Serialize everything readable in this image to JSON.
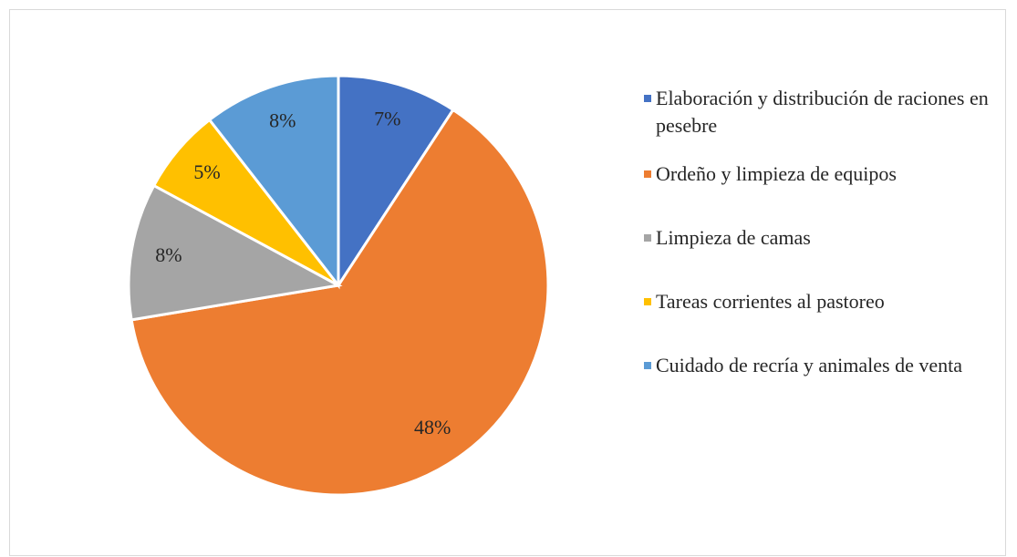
{
  "chart_data": {
    "type": "pie",
    "categories": [
      "Elaboración y distribución de raciones en pesebre",
      "Ordeño y limpieza de equipos",
      "Limpieza de camas",
      "Tareas corrientes al pastoreo",
      "Cuidado de recría y animales de venta"
    ],
    "values": [
      7,
      48,
      8,
      5,
      8
    ],
    "value_labels": [
      "7%",
      "48%",
      "8%",
      "5%",
      "8%"
    ],
    "colors": [
      "#4472c4",
      "#ed7d31",
      "#a5a5a5",
      "#ffc000",
      "#5b9bd5"
    ],
    "legend": "right"
  }
}
